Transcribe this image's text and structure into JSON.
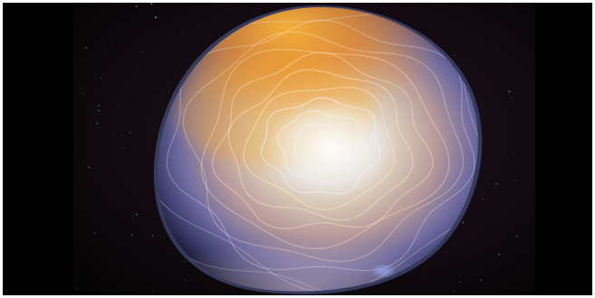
{
  "image": {
    "subject": "glowing-disc",
    "colors": {
      "background": "#000000",
      "backdrop": "#140c12",
      "core": "#f4f2ee",
      "warm_glow": "#f09a1e",
      "cool_rim": "#5b5f9e",
      "rim_edge": "#3a3f66",
      "speckle": "#9aa3c8"
    }
  }
}
